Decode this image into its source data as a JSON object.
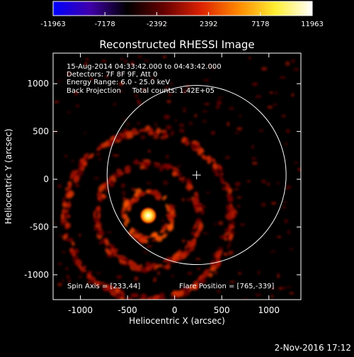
{
  "chart_data": {
    "type": "heatmap",
    "title": "Reconstructed RHESSI Image",
    "xlabel": "Heliocentric X (arcsec)",
    "ylabel": "Heliocentric Y (arcsec)",
    "xlim": [
      -1290,
      1340
    ],
    "ylim": [
      -1260,
      1320
    ],
    "xticks": [
      -1000,
      -500,
      0,
      500,
      1000
    ],
    "yticks": [
      -1000,
      -500,
      0,
      500,
      1000
    ],
    "xtick_labels": [
      "-1000",
      "-500",
      "0",
      "500",
      "1000"
    ],
    "ytick_labels": [
      "-1000",
      "-500",
      "0",
      "500",
      "1000"
    ],
    "colorbar": {
      "range": [
        -11963,
        11963
      ],
      "ticks": [
        -11963,
        -7178,
        -2392,
        2392,
        7178,
        11963
      ],
      "tick_labels": [
        "-11963",
        "-7178",
        "-2392",
        "2392",
        "7178",
        "11963"
      ],
      "colors": [
        "#0000ff",
        "#4000aa",
        "#000000",
        "#660000",
        "#dd2200",
        "#ff8800",
        "#ffee33",
        "#ffffff"
      ]
    },
    "info_lines": [
      "15-Aug-2014 04:33:42.000 to 04:43:42.000",
      "Detectors: 7F 8F 9F, Att 0",
      "Energy Range: 6.0 - 25.0 keV",
      "Back Projection     Total counts: 1.42E+05"
    ],
    "spin_axis": "Spin Axis = [233,44]",
    "flare_position": "Flare Position = [765,-339]",
    "timestamp": "2-Nov-2016 17:12",
    "sun_center": [
      233,
      44
    ],
    "solar_disk_radius": 950,
    "source": {
      "x": -280,
      "y": -380,
      "peak": 11963
    },
    "ring_radii": [
      240,
      540,
      880
    ]
  }
}
